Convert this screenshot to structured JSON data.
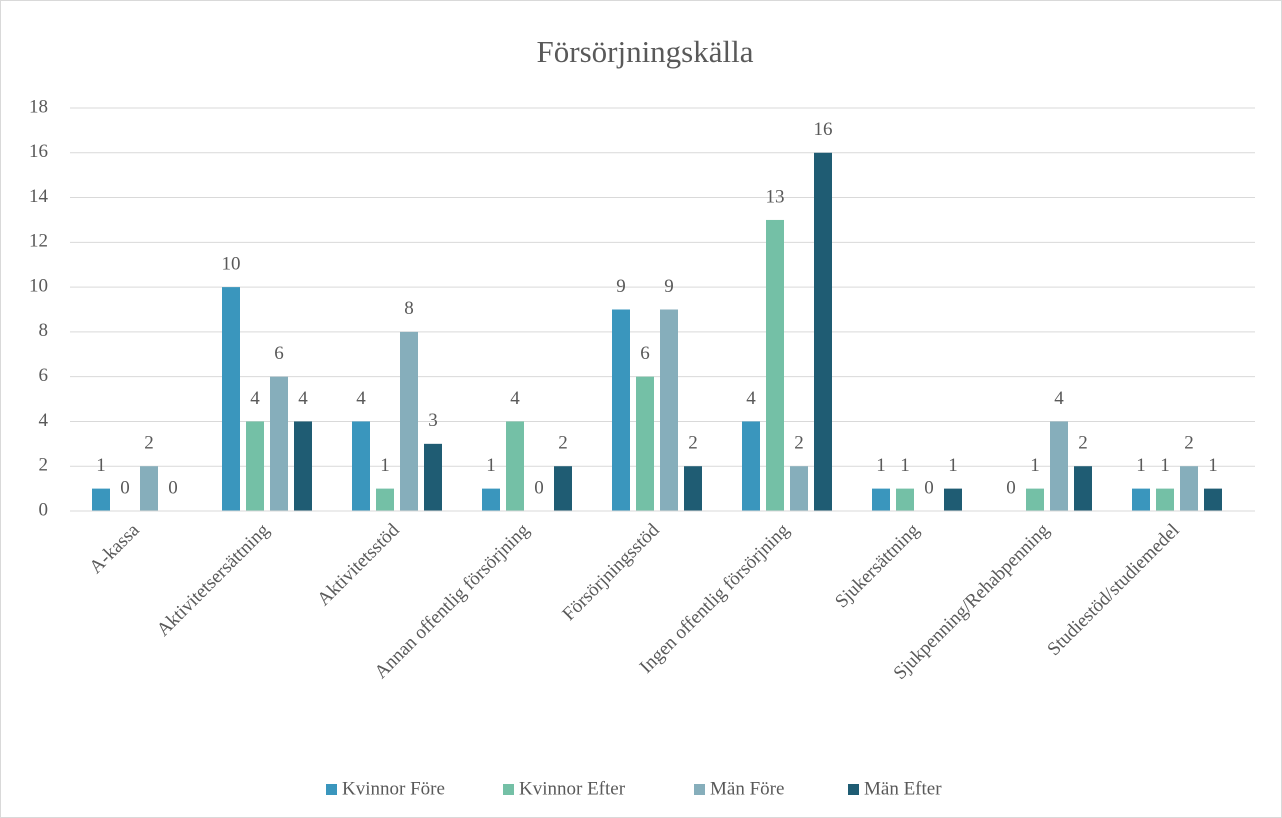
{
  "chart_data": {
    "type": "bar",
    "title": "Försörjningskälla",
    "categories": [
      "A-kassa",
      "Aktivitetsersättning",
      "Aktivitetsstöd",
      "Annan offentlig försörjning",
      "Försörjningsstöd",
      "Ingen offentlig försörjning",
      "Sjukersättning",
      "Sjukpenning/Rehabpenning",
      "Studiestöd/studiemedel"
    ],
    "series": [
      {
        "name": "Kvinnor Före",
        "color": "#3a96bd",
        "values": [
          1,
          10,
          4,
          1,
          9,
          4,
          1,
          0,
          1
        ]
      },
      {
        "name": "Kvinnor Efter",
        "color": "#74c0a6",
        "values": [
          0,
          4,
          1,
          4,
          6,
          13,
          1,
          1,
          1
        ]
      },
      {
        "name": "Män Före",
        "color": "#86aebb",
        "values": [
          2,
          6,
          8,
          0,
          9,
          2,
          0,
          4,
          2
        ]
      },
      {
        "name": "Män Efter",
        "color": "#1f5c73",
        "values": [
          0,
          4,
          3,
          2,
          2,
          16,
          1,
          2,
          1
        ]
      }
    ],
    "ylim": [
      0,
      18
    ],
    "yticks": [
      0,
      2,
      4,
      6,
      8,
      10,
      12,
      14,
      16,
      18
    ],
    "grid": true,
    "legend": "bottom"
  }
}
